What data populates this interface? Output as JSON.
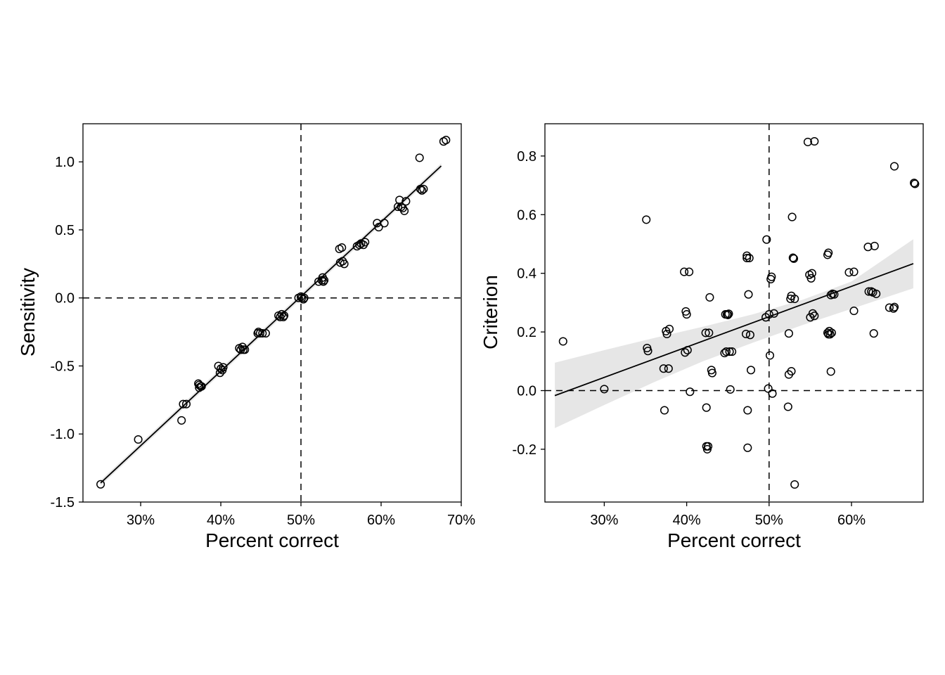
{
  "chart_data": [
    {
      "type": "scatter",
      "xlabel": "Percent correct",
      "ylabel": "Sensitivity",
      "xlim": [
        0.228,
        0.7
      ],
      "ylim": [
        -1.5,
        1.28
      ],
      "xticks": [
        0.3,
        0.4,
        0.5,
        0.6,
        0.7
      ],
      "xtick_labels": [
        "30%",
        "40%",
        "50%",
        "60%",
        "70%"
      ],
      "yticks": [
        -1.5,
        -1.0,
        -0.5,
        0.0,
        0.5,
        1.0
      ],
      "ytick_labels": [
        "-1.5",
        "-1.0",
        "-0.5",
        "0.0",
        "0.5",
        "1.0"
      ],
      "ref_lines": {
        "x": 0.5,
        "y": 0.0
      },
      "fit": {
        "x": [
          0.25,
          0.675
        ],
        "y": [
          -1.36,
          0.97
        ]
      },
      "ci_band": {
        "x": [
          0.25,
          0.675
        ],
        "lower": [
          -1.38,
          0.95
        ],
        "upper": [
          -1.34,
          0.99
        ]
      },
      "grid": false,
      "points": [
        [
          0.25,
          -1.37
        ],
        [
          0.297,
          -1.04
        ],
        [
          0.351,
          -0.9
        ],
        [
          0.353,
          -0.78
        ],
        [
          0.357,
          -0.78
        ],
        [
          0.372,
          -0.63
        ],
        [
          0.373,
          -0.64
        ],
        [
          0.375,
          -0.65
        ],
        [
          0.373,
          -0.66
        ],
        [
          0.376,
          -0.65
        ],
        [
          0.397,
          -0.5
        ],
        [
          0.4,
          -0.52
        ],
        [
          0.399,
          -0.55
        ],
        [
          0.402,
          -0.53
        ],
        [
          0.403,
          -0.51
        ],
        [
          0.423,
          -0.37
        ],
        [
          0.425,
          -0.38
        ],
        [
          0.428,
          -0.38
        ],
        [
          0.43,
          -0.38
        ],
        [
          0.427,
          -0.36
        ],
        [
          0.446,
          -0.26
        ],
        [
          0.449,
          -0.26
        ],
        [
          0.447,
          -0.25
        ],
        [
          0.452,
          -0.26
        ],
        [
          0.456,
          -0.26
        ],
        [
          0.472,
          -0.13
        ],
        [
          0.474,
          -0.14
        ],
        [
          0.476,
          -0.12
        ],
        [
          0.479,
          -0.13
        ],
        [
          0.478,
          -0.14
        ],
        [
          0.497,
          0.0
        ],
        [
          0.501,
          0.0
        ],
        [
          0.503,
          -0.01
        ],
        [
          0.5,
          0.01
        ],
        [
          0.504,
          0.0
        ],
        [
          0.522,
          0.12
        ],
        [
          0.526,
          0.13
        ],
        [
          0.527,
          0.15
        ],
        [
          0.529,
          0.13
        ],
        [
          0.528,
          0.12
        ],
        [
          0.548,
          0.36
        ],
        [
          0.551,
          0.37
        ],
        [
          0.549,
          0.26
        ],
        [
          0.552,
          0.27
        ],
        [
          0.554,
          0.25
        ],
        [
          0.57,
          0.38
        ],
        [
          0.573,
          0.39
        ],
        [
          0.575,
          0.4
        ],
        [
          0.578,
          0.39
        ],
        [
          0.58,
          0.41
        ],
        [
          0.595,
          0.55
        ],
        [
          0.597,
          0.52
        ],
        [
          0.604,
          0.55
        ],
        [
          0.621,
          0.67
        ],
        [
          0.623,
          0.72
        ],
        [
          0.625,
          0.67
        ],
        [
          0.627,
          0.66
        ],
        [
          0.629,
          0.64
        ],
        [
          0.631,
          0.71
        ],
        [
          0.648,
          1.03
        ],
        [
          0.649,
          0.8
        ],
        [
          0.651,
          0.79
        ],
        [
          0.653,
          0.8
        ],
        [
          0.678,
          1.15
        ],
        [
          0.681,
          1.16
        ]
      ]
    },
    {
      "type": "scatter",
      "xlabel": "Percent correct",
      "ylabel": "Criterion",
      "xlim": [
        0.228,
        0.687
      ],
      "ylim": [
        -0.38,
        0.91
      ],
      "xticks": [
        0.3,
        0.4,
        0.5,
        0.6
      ],
      "xtick_labels": [
        "30%",
        "40%",
        "50%",
        "60%"
      ],
      "yticks": [
        -0.2,
        0.0,
        0.2,
        0.4,
        0.6,
        0.8
      ],
      "ytick_labels": [
        "-0.2",
        "0.0",
        "0.2",
        "0.4",
        "0.6",
        "0.8"
      ],
      "ref_lines": {
        "x": 0.5,
        "y": 0.0
      },
      "fit": {
        "x": [
          0.24,
          0.675
        ],
        "y": [
          -0.017,
          0.433
        ]
      },
      "ci_band": {
        "x": [
          0.24,
          0.3,
          0.36,
          0.42,
          0.48,
          0.54,
          0.6,
          0.675
        ],
        "lower": [
          -0.128,
          -0.049,
          0.028,
          0.1,
          0.163,
          0.223,
          0.279,
          0.349
        ],
        "upper": [
          0.095,
          0.138,
          0.179,
          0.218,
          0.26,
          0.309,
          0.372,
          0.516
        ]
      },
      "grid": false,
      "points": [
        [
          0.25,
          0.168
        ],
        [
          0.3,
          0.005
        ],
        [
          0.351,
          0.583
        ],
        [
          0.352,
          0.145
        ],
        [
          0.353,
          0.135
        ],
        [
          0.372,
          0.075
        ],
        [
          0.373,
          -0.067
        ],
        [
          0.375,
          0.203
        ],
        [
          0.376,
          0.193
        ],
        [
          0.378,
          0.075
        ],
        [
          0.379,
          0.21
        ],
        [
          0.397,
          0.405
        ],
        [
          0.398,
          0.13
        ],
        [
          0.399,
          0.27
        ],
        [
          0.4,
          0.26
        ],
        [
          0.401,
          0.138
        ],
        [
          0.403,
          0.405
        ],
        [
          0.404,
          -0.004
        ],
        [
          0.423,
          0.197
        ],
        [
          0.424,
          -0.058
        ],
        [
          0.424,
          -0.19
        ],
        [
          0.425,
          -0.2
        ],
        [
          0.426,
          -0.19
        ],
        [
          0.427,
          0.197
        ],
        [
          0.428,
          0.318
        ],
        [
          0.43,
          0.07
        ],
        [
          0.431,
          0.06
        ],
        [
          0.446,
          0.128
        ],
        [
          0.447,
          0.26
        ],
        [
          0.448,
          0.133
        ],
        [
          0.449,
          0.26
        ],
        [
          0.45,
          0.258
        ],
        [
          0.451,
          0.262
        ],
        [
          0.452,
          0.133
        ],
        [
          0.453,
          0.004
        ],
        [
          0.455,
          0.133
        ],
        [
          0.472,
          0.193
        ],
        [
          0.473,
          0.452
        ],
        [
          0.473,
          0.46
        ],
        [
          0.474,
          -0.067
        ],
        [
          0.474,
          -0.195
        ],
        [
          0.475,
          0.328
        ],
        [
          0.476,
          0.452
        ],
        [
          0.477,
          0.19
        ],
        [
          0.478,
          0.07
        ],
        [
          0.496,
          0.25
        ],
        [
          0.497,
          0.515
        ],
        [
          0.499,
          0.007
        ],
        [
          0.5,
          0.26
        ],
        [
          0.501,
          0.12
        ],
        [
          0.502,
          0.38
        ],
        [
          0.503,
          0.388
        ],
        [
          0.504,
          -0.01
        ],
        [
          0.506,
          0.263
        ],
        [
          0.523,
          -0.055
        ],
        [
          0.524,
          0.055
        ],
        [
          0.524,
          0.195
        ],
        [
          0.526,
          0.313
        ],
        [
          0.527,
          0.323
        ],
        [
          0.527,
          0.066
        ],
        [
          0.528,
          0.592
        ],
        [
          0.529,
          0.453
        ],
        [
          0.53,
          0.45
        ],
        [
          0.531,
          0.313
        ],
        [
          0.531,
          -0.32
        ],
        [
          0.547,
          0.848
        ],
        [
          0.549,
          0.395
        ],
        [
          0.55,
          0.25
        ],
        [
          0.551,
          0.383
        ],
        [
          0.552,
          0.4
        ],
        [
          0.553,
          0.263
        ],
        [
          0.555,
          0.255
        ],
        [
          0.555,
          0.85
        ],
        [
          0.571,
          0.197
        ],
        [
          0.571,
          0.463
        ],
        [
          0.572,
          0.47
        ],
        [
          0.572,
          0.192
        ],
        [
          0.573,
          0.203
        ],
        [
          0.574,
          0.192
        ],
        [
          0.575,
          0.326
        ],
        [
          0.575,
          0.065
        ],
        [
          0.576,
          0.197
        ],
        [
          0.577,
          0.33
        ],
        [
          0.579,
          0.328
        ],
        [
          0.597,
          0.403
        ],
        [
          0.603,
          0.405
        ],
        [
          0.603,
          0.272
        ],
        [
          0.62,
          0.49
        ],
        [
          0.621,
          0.338
        ],
        [
          0.624,
          0.338
        ],
        [
          0.626,
          0.335
        ],
        [
          0.627,
          0.195
        ],
        [
          0.628,
          0.493
        ],
        [
          0.63,
          0.33
        ],
        [
          0.646,
          0.283
        ],
        [
          0.651,
          0.28
        ],
        [
          0.652,
          0.285
        ],
        [
          0.652,
          0.765
        ],
        [
          0.676,
          0.708
        ],
        [
          0.677,
          0.705
        ]
      ]
    }
  ]
}
